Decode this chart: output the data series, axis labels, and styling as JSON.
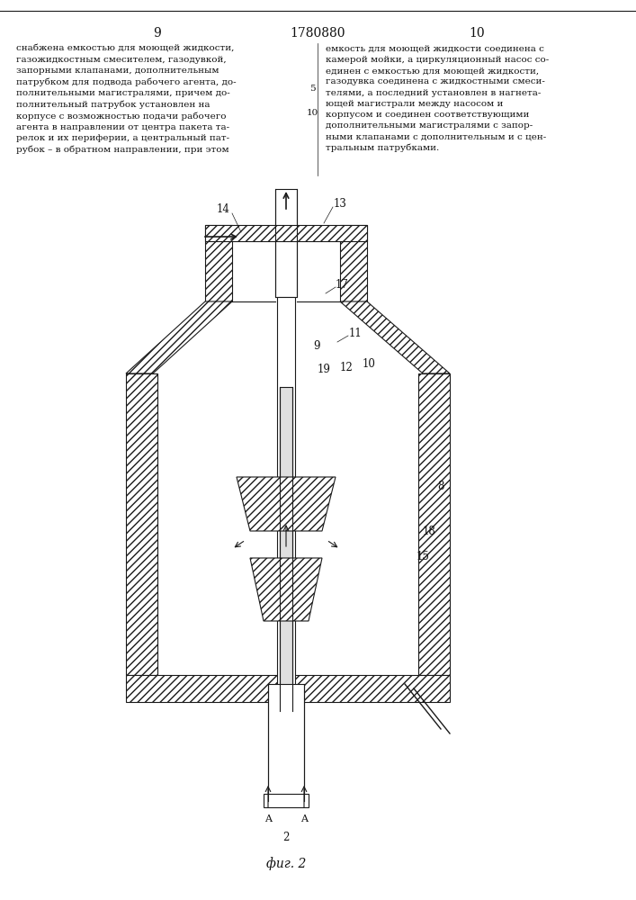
{
  "page_number_left": "9",
  "page_number_center": "1780880",
  "page_number_right": "10",
  "text_left": "снабжена емкостью для моющей жидкости,\nгазожидкостным смесителем, газодувкой,\nзапорными клапанами, дополнительным\nпатрубком для подвода рабочего агента, до-\nполнительными магистралями, причем до-\nполнительный патрубок установлен на\nкорпусе с возможностью подачи рабочего\nагента в направлении от центра пакета та-\nрелок и их периферии, а центральный пат-\nрубок – в обратном направлении, при этом",
  "text_right": "емкость для моющей жидкости соединена с\nкамерой мойки, а циркуляционный насос со-\nединен с емкостью для моющей жидкости,\nгазодувка соединена с жидкостными смеси-\nтелями, а последний установлен в нагнета-\nющей магистрали между насосом и\nкорпусом и соединен соответствующими\nдополнительными магистралями с запор-\nными клапанами с дополнительным и с цен-\nтральным патрубками.",
  "line_numbers_left": "5\n10",
  "fig_label": "фиг. 2",
  "bg_color": "#ffffff",
  "drawing_color": "#1a1a1a",
  "hatch_color": "#333333",
  "text_color": "#111111"
}
